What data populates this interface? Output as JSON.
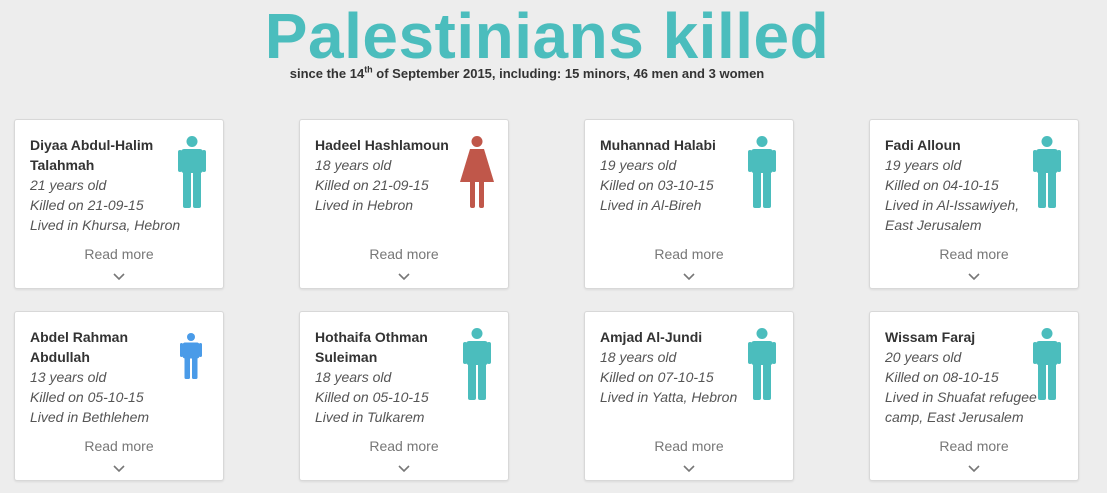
{
  "header": {
    "title": "Palestinians killed",
    "subtitle_pre": "since the 14",
    "subtitle_sup": "th",
    "subtitle_post": " of September 2015, including: 15 minors, 46 men and 3 women"
  },
  "read_more_label": "Read more",
  "colors": {
    "man": "#4bbdbd",
    "woman": "#c0574a",
    "minor": "#4a9be8"
  },
  "cards": [
    {
      "name": "Diyaa Abdul-Halim Talahmah",
      "age": "21 years old",
      "killed": "Killed on 21-09-15",
      "lived": "Lived in Khursa, Hebron",
      "icon": "man-icon"
    },
    {
      "name": "Hadeel Hashlamoun",
      "age": "18 years old",
      "killed": "Killed on 21-09-15",
      "lived": "Lived in Hebron",
      "icon": "woman-icon"
    },
    {
      "name": "Muhannad Halabi",
      "age": "19 years old",
      "killed": "Killed on 03-10-15",
      "lived": "Lived in Al-Bireh",
      "icon": "man-icon"
    },
    {
      "name": "Fadi Alloun",
      "age": "19 years old",
      "killed": "Killed on 04-10-15",
      "lived": "Lived in Al-Issawiyeh, East Jerusalem",
      "icon": "man-icon"
    },
    {
      "name": "Abdel Rahman Abdullah",
      "age": "13 years old",
      "killed": "Killed on 05-10-15",
      "lived": "Lived in Bethlehem",
      "icon": "child-icon"
    },
    {
      "name": "Hothaifa Othman Suleiman",
      "age": "18 years old",
      "killed": "Killed on 05-10-15",
      "lived": "Lived in Tulkarem",
      "icon": "man-icon"
    },
    {
      "name": "Amjad Al-Jundi",
      "age": "18 years old",
      "killed": "Killed on 07-10-15",
      "lived": "Lived in Yatta, Hebron",
      "icon": "man-icon"
    },
    {
      "name": "Wissam Faraj",
      "age": "20 years old",
      "killed": "Killed on 08-10-15",
      "lived": "Lived in Shuafat refugee camp, East Jerusalem",
      "icon": "man-icon"
    }
  ]
}
